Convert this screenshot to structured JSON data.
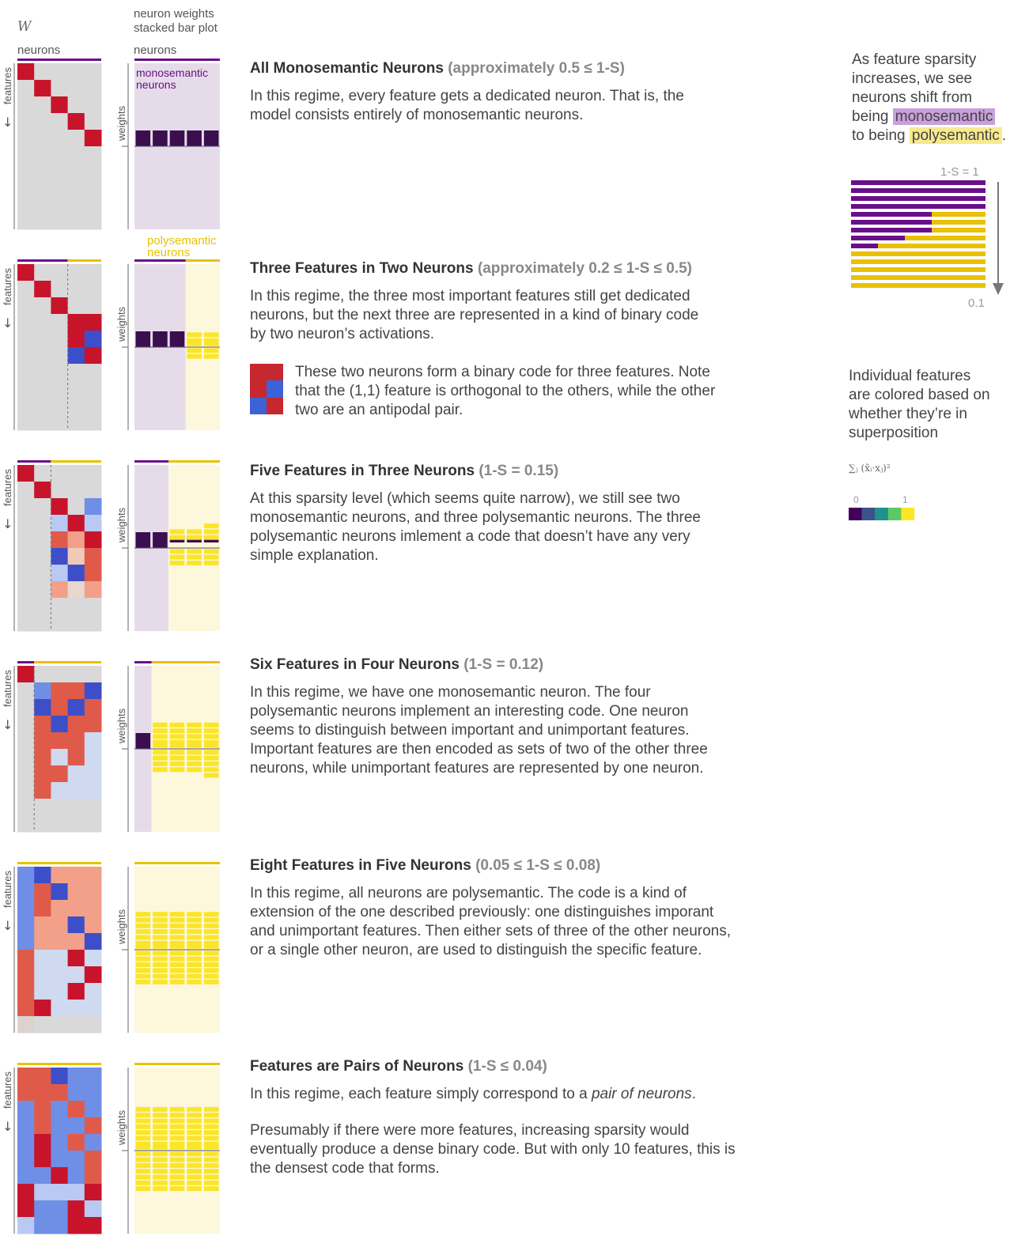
{
  "header": {
    "w_label": "W",
    "neurons_label": "neurons",
    "stacked_title_line1": "neuron weights",
    "stacked_title_line2": "stacked bar plot",
    "stacked_neurons_label": "neurons",
    "features_label": "features",
    "weights_label": "weights",
    "mono_label_line1": "monosemantic",
    "mono_label_line2": "neurons",
    "poly_label_line1": "polysemantic",
    "poly_label_line2": "neurons"
  },
  "sections": [
    {
      "title": "All Monosemantic Neurons",
      "condition": "(approximately 0.5 ≤ 1-S)",
      "body": "In this regime, every feature gets a dedicated neuron. That is, the model consists entirely of monosemantic neurons."
    },
    {
      "title": "Three Features in Two Neurons",
      "condition": "(approximately 0.2 ≤ 1-S ≤ 0.5)",
      "body": "In this regime, the three most important features still get dedicated neurons, but the next three are represented in a kind of binary code by two neuron’s activations.",
      "note": "These two neurons form a binary code for three features. Note that the (1,1) feature is orthogonal to the others, while the other two are an antipodal pair."
    },
    {
      "title": "Five Features in Three Neurons",
      "condition": "(1-S = 0.15)",
      "body": "At this sparsity level (which seems quite narrow), we still see two monosemantic neurons, and three polysemantic neurons. The three polysemantic neurons imlement a code that doesn’t have any very simple explanation."
    },
    {
      "title": "Six Features in Four Neurons",
      "condition": "(1-S = 0.12)",
      "body": "In this regime, we have one monosemantic neuron. The four polysemantic neurons implement an interesting code. One neuron seems to distinguish between important and unimportant features. Important features are then encoded as sets of two of the other three neurons, while unimportant features are represented by one neuron."
    },
    {
      "title": "Eight Features in Five Neurons",
      "condition": "(0.05 ≤ 1-S ≤ 0.08)",
      "body": "In this regime, all neurons are polysemantic. The code is a kind of extension of the one described previously: one distinguishes imporant and unimportant features. Then either sets of three of the other neurons, or a single other neuron, are used to distinguish the specific feature."
    },
    {
      "title": "Features are Pairs of Neurons",
      "condition": "(1-S ≤ 0.04)",
      "body_before": "In this regime, each feature simply correspond to a ",
      "body_em": "pair of neurons",
      "body_after": ".",
      "body2": "Presumably if there were more features, increasing sparsity would eventually produce a dense binary code. But with only 10 features, this is the densest code that forms."
    }
  ],
  "sidebar": {
    "line1": "As feature sparsity",
    "line2": "increases, we see",
    "line3": "neurons shift from",
    "line4_prefix": "being ",
    "mono_word": "monosemantic",
    "line5_prefix": "to being ",
    "poly_word": "polysemantic",
    "line5_suffix": ".",
    "top_label": "1-S = 1",
    "bottom_label": "0.1",
    "mono_fractions": [
      1,
      1,
      1,
      1,
      0.6,
      0.6,
      0.6,
      0.4,
      0.2,
      0,
      0,
      0,
      0,
      0
    ],
    "legend_line1": "Individual features",
    "legend_line2": "are colored based on",
    "legend_line3": "whether they’re in",
    "legend_line4": "superposition",
    "legend_formula": "∑ⱼ (x̂ᵢ·xⱼ)²",
    "scale_min": "0",
    "scale_max": "1"
  },
  "colors": {
    "mono": "#6a0f8a",
    "poly": "#e8c200",
    "mono_bg": "#e6dce9",
    "poly_bg": "#fdf8dc",
    "red": "#c0142b",
    "blue": "#3d55d0",
    "dark_bar": "#3a0e4f",
    "yellow_bar": "#fbe529",
    "viridis": [
      "#44015a",
      "#3b528b",
      "#21918c",
      "#5ec962",
      "#fde725"
    ]
  }
}
